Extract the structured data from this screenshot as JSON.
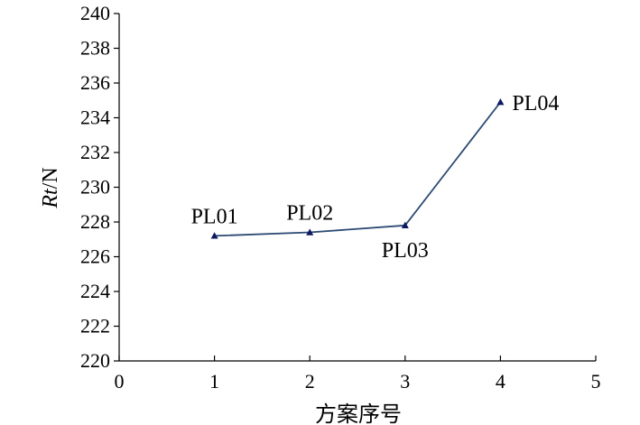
{
  "chart_data": {
    "type": "line",
    "title": "",
    "xlabel": "方案序号",
    "ylabel_italic": "Rt",
    "ylabel_unit": "/N",
    "xlim": [
      0,
      5
    ],
    "ylim": [
      220,
      240
    ],
    "xticks": [
      0,
      1,
      2,
      3,
      4,
      5
    ],
    "yticks": [
      220,
      222,
      224,
      226,
      228,
      230,
      232,
      234,
      236,
      238,
      240
    ],
    "grid": false,
    "legend": "none",
    "series": [
      {
        "color": "#2c4a73",
        "marker": "triangle",
        "marker_color": "#0d1a63",
        "points": [
          {
            "x": 1,
            "y": 227.2,
            "label": "PL01",
            "label_position": "above"
          },
          {
            "x": 2,
            "y": 227.4,
            "label": "PL02",
            "label_position": "above"
          },
          {
            "x": 3,
            "y": 227.8,
            "label": "PL03",
            "label_position": "below"
          },
          {
            "x": 4,
            "y": 234.9,
            "label": "PL04",
            "label_position": "right"
          }
        ]
      }
    ]
  }
}
